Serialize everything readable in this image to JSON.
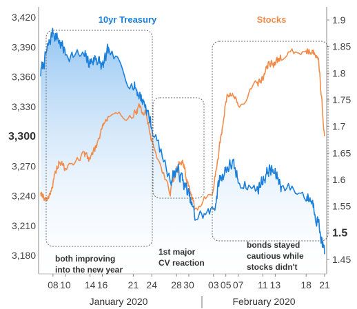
{
  "chart_data": {
    "type": "line",
    "x": [
      "2020-01-06",
      "2020-01-07",
      "2020-01-08",
      "2020-01-09",
      "2020-01-10",
      "2020-01-13",
      "2020-01-14",
      "2020-01-15",
      "2020-01-16",
      "2020-01-17",
      "2020-01-21",
      "2020-01-22",
      "2020-01-23",
      "2020-01-24",
      "2020-01-27",
      "2020-01-28",
      "2020-01-29",
      "2020-01-30",
      "2020-01-31",
      "2020-02-03",
      "2020-02-04",
      "2020-02-05",
      "2020-02-06",
      "2020-02-07",
      "2020-02-10",
      "2020-02-11",
      "2020-02-12",
      "2020-02-13",
      "2020-02-14",
      "2020-02-18",
      "2020-02-19",
      "2020-02-20",
      "2020-02-21"
    ],
    "x_tick_labels": [
      "08",
      "10",
      "14",
      "16",
      "21",
      "24",
      "28",
      "30",
      "03",
      "05",
      "07",
      "11",
      "13",
      "18",
      "21"
    ],
    "x_tick_dates": [
      "2020-01-08",
      "2020-01-10",
      "2020-01-14",
      "2020-01-16",
      "2020-01-21",
      "2020-01-24",
      "2020-01-28",
      "2020-01-30",
      "2020-02-03",
      "2020-02-05",
      "2020-02-07",
      "2020-02-11",
      "2020-02-13",
      "2020-02-18",
      "2020-02-21"
    ],
    "month_labels": [
      "January 2020",
      "February 2020"
    ],
    "series": [
      {
        "name": "10yr Treasury",
        "axis": "right",
        "color": "#1a7fdb",
        "fill": true,
        "values": [
          1.8,
          1.84,
          1.88,
          1.86,
          1.84,
          1.83,
          1.82,
          1.83,
          1.81,
          1.84,
          1.78,
          1.76,
          1.74,
          1.7,
          1.6,
          1.62,
          1.6,
          1.57,
          1.53,
          1.54,
          1.6,
          1.62,
          1.63,
          1.6,
          1.58,
          1.6,
          1.62,
          1.61,
          1.59,
          1.57,
          1.56,
          1.52,
          1.46
        ]
      },
      {
        "name": "Stocks",
        "axis": "left",
        "color": "#f28c4b",
        "fill": false,
        "values": [
          3245,
          3235,
          3252,
          3275,
          3267,
          3282,
          3278,
          3290,
          3312,
          3318,
          3322,
          3328,
          3325,
          3295,
          3243,
          3267,
          3275,
          3250,
          3225,
          3248,
          3290,
          3336,
          3346,
          3330,
          3353,
          3358,
          3375,
          3372,
          3380,
          3388,
          3386,
          3380,
          3300
        ]
      }
    ],
    "y_left": {
      "ticks": [
        "3,180",
        "3,210",
        "3,240",
        "3,270",
        "3,300",
        "3,330",
        "3,360",
        "3,390",
        "3,420"
      ],
      "bold_tick": "3,300",
      "range": [
        3165,
        3435
      ]
    },
    "y_right": {
      "ticks": [
        "1.45",
        "1.5",
        "1.55",
        "1.6",
        "1.65",
        "1.7",
        "1.75",
        "1.8",
        "1.85",
        "1.9"
      ],
      "bold_tick": "1.5",
      "range": [
        1.425,
        1.92
      ]
    },
    "annotations": [
      {
        "lines": [
          "both improving",
          "into the new year"
        ]
      },
      {
        "lines": [
          "1st major",
          "CV reaction"
        ]
      },
      {
        "lines": [
          "bonds stayed",
          "cautious while",
          "stocks didn't"
        ]
      }
    ],
    "legend": [
      {
        "label": "10yr Treasury",
        "color": "#1a7fdb"
      },
      {
        "label": "Stocks",
        "color": "#f28c4b"
      }
    ]
  }
}
